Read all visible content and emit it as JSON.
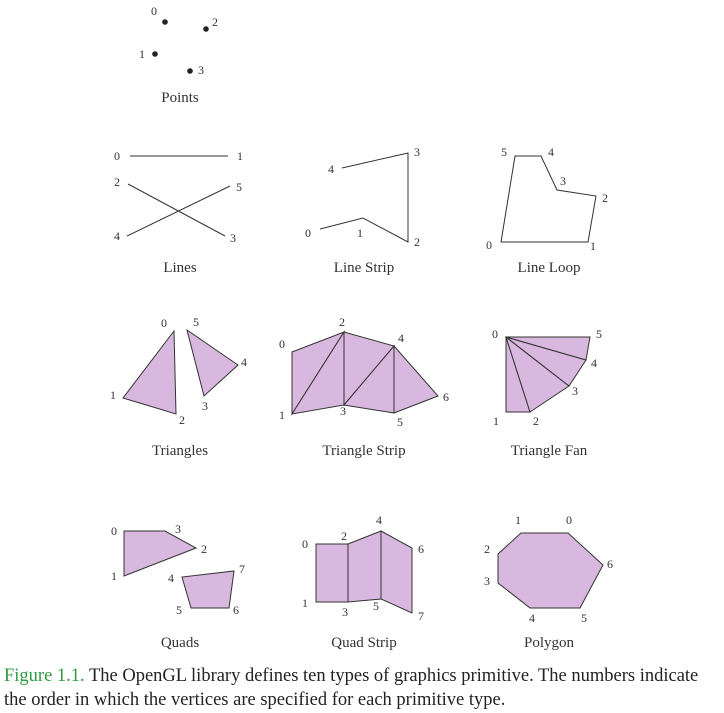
{
  "colors": {
    "fill": "#d8b8de",
    "stroke": "#333333",
    "caption_label": "#2e9a3e"
  },
  "panels": {
    "points": {
      "label": "Points",
      "vertices": [
        {
          "n": "0",
          "x": 165,
          "y": 22
        },
        {
          "n": "1",
          "x": 155,
          "y": 54
        },
        {
          "n": "2",
          "x": 206,
          "y": 29
        },
        {
          "n": "3",
          "x": 190,
          "y": 71
        }
      ]
    },
    "lines": {
      "label": "Lines",
      "vertices": [
        {
          "n": "0",
          "x": 130,
          "y": 156
        },
        {
          "n": "1",
          "x": 228,
          "y": 156
        },
        {
          "n": "2",
          "x": 128,
          "y": 184
        },
        {
          "n": "3",
          "x": 225,
          "y": 236
        },
        {
          "n": "4",
          "x": 127,
          "y": 236
        },
        {
          "n": "5",
          "x": 230,
          "y": 186
        }
      ]
    },
    "line_strip": {
      "label": "Line Strip",
      "vertices": [
        {
          "n": "0",
          "x": 320,
          "y": 229
        },
        {
          "n": "1",
          "x": 363,
          "y": 218
        },
        {
          "n": "2",
          "x": 408,
          "y": 242
        },
        {
          "n": "3",
          "x": 408,
          "y": 153
        },
        {
          "n": "4",
          "x": 342,
          "y": 168
        }
      ]
    },
    "line_loop": {
      "label": "Line Loop",
      "vertices": [
        {
          "n": "0",
          "x": 501,
          "y": 242
        },
        {
          "n": "1",
          "x": 588,
          "y": 242
        },
        {
          "n": "2",
          "x": 596,
          "y": 196
        },
        {
          "n": "3",
          "x": 557,
          "y": 190
        },
        {
          "n": "4",
          "x": 541,
          "y": 156
        },
        {
          "n": "5",
          "x": 515,
          "y": 156
        }
      ]
    },
    "triangles": {
      "label": "Triangles",
      "vertices": [
        {
          "n": "0",
          "x": 174,
          "y": 331
        },
        {
          "n": "1",
          "x": 123,
          "y": 398
        },
        {
          "n": "2",
          "x": 176,
          "y": 414
        },
        {
          "n": "3",
          "x": 204,
          "y": 396
        },
        {
          "n": "4",
          "x": 238,
          "y": 365
        },
        {
          "n": "5",
          "x": 187,
          "y": 330
        }
      ]
    },
    "triangle_strip": {
      "label": "Triangle Strip",
      "vertices": [
        {
          "n": "0",
          "x": 292,
          "y": 352
        },
        {
          "n": "1",
          "x": 292,
          "y": 414
        },
        {
          "n": "2",
          "x": 344,
          "y": 332
        },
        {
          "n": "3",
          "x": 344,
          "y": 405
        },
        {
          "n": "4",
          "x": 394,
          "y": 346
        },
        {
          "n": "5",
          "x": 394,
          "y": 413
        },
        {
          "n": "6",
          "x": 438,
          "y": 396
        }
      ]
    },
    "triangle_fan": {
      "label": "Triangle Fan",
      "vertices": [
        {
          "n": "0",
          "x": 506,
          "y": 337
        },
        {
          "n": "1",
          "x": 506,
          "y": 412
        },
        {
          "n": "2",
          "x": 530,
          "y": 412
        },
        {
          "n": "3",
          "x": 569,
          "y": 386
        },
        {
          "n": "4",
          "x": 586,
          "y": 360
        },
        {
          "n": "5",
          "x": 590,
          "y": 337
        }
      ]
    },
    "quads": {
      "label": "Quads",
      "vertices": [
        {
          "n": "0",
          "x": 124,
          "y": 531
        },
        {
          "n": "1",
          "x": 124,
          "y": 576
        },
        {
          "n": "2",
          "x": 196,
          "y": 548
        },
        {
          "n": "3",
          "x": 165,
          "y": 531
        },
        {
          "n": "4",
          "x": 182,
          "y": 577
        },
        {
          "n": "5",
          "x": 191,
          "y": 608
        },
        {
          "n": "6",
          "x": 229,
          "y": 608
        },
        {
          "n": "7",
          "x": 234,
          "y": 571
        }
      ]
    },
    "quad_strip": {
      "label": "Quad Strip",
      "vertices": [
        {
          "n": "0",
          "x": 316,
          "y": 544
        },
        {
          "n": "1",
          "x": 316,
          "y": 602
        },
        {
          "n": "2",
          "x": 348,
          "y": 544
        },
        {
          "n": "3",
          "x": 348,
          "y": 602
        },
        {
          "n": "4",
          "x": 381,
          "y": 531
        },
        {
          "n": "5",
          "x": 381,
          "y": 599
        },
        {
          "n": "6",
          "x": 412,
          "y": 548
        },
        {
          "n": "7",
          "x": 412,
          "y": 613
        }
      ]
    },
    "polygon": {
      "label": "Polygon",
      "vertices": [
        {
          "n": "0",
          "x": 568,
          "y": 533
        },
        {
          "n": "1",
          "x": 521,
          "y": 533
        },
        {
          "n": "2",
          "x": 498,
          "y": 554
        },
        {
          "n": "3",
          "x": 498,
          "y": 583
        },
        {
          "n": "4",
          "x": 530,
          "y": 608
        },
        {
          "n": "5",
          "x": 580,
          "y": 608
        },
        {
          "n": "6",
          "x": 603,
          "y": 565
        }
      ]
    }
  },
  "caption": {
    "label": "Figure 1.1.",
    "text": " The OpenGL library defines ten types of graphics primitive. The numbers indicate the order in which the vertices are specified for each primitive type."
  }
}
